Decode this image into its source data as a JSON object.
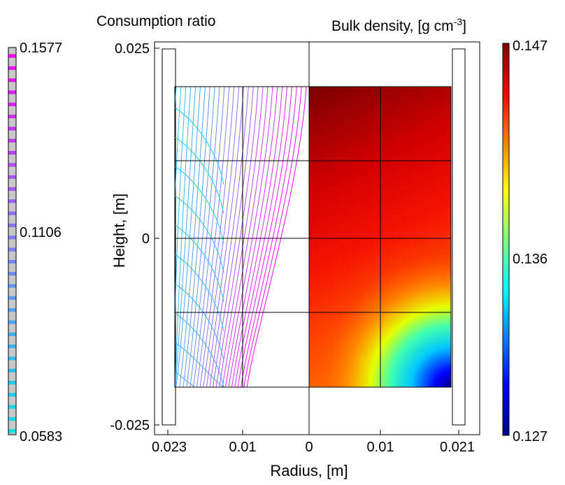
{
  "chart_data": [
    {
      "type": "contour",
      "title": "Consumption ratio",
      "xlabel": "Radius, [m]",
      "ylabel": "Height, [m]",
      "x_ticks": [
        "0.023",
        "0.01",
        "0"
      ],
      "y_ticks": [
        "0.025",
        "0",
        "-0.025"
      ],
      "colorbar": {
        "min": 0.0583,
        "mid": 0.1106,
        "max": 0.1577,
        "tick_labels": [
          "0.1577",
          "0.1106",
          "0.0583"
        ]
      },
      "colors": {
        "low": "#00e5e5",
        "mid": "#7f7fff",
        "high": "#ff00ff"
      },
      "grid_cells": {
        "rows": 4,
        "cols": 2
      }
    },
    {
      "type": "heatmap",
      "title": "Bulk density, [g cm",
      "title_superscript": "-3",
      "title_suffix": "]",
      "x_ticks": [
        "0",
        "0.01",
        "0.021"
      ],
      "colorbar": {
        "min": 0.127,
        "mid": 0.136,
        "max": 0.147,
        "tick_labels": [
          "0.147",
          "0.136",
          "0.127"
        ],
        "colormap": "jet"
      },
      "grid_cells": {
        "rows": 4,
        "cols": 2
      }
    }
  ]
}
